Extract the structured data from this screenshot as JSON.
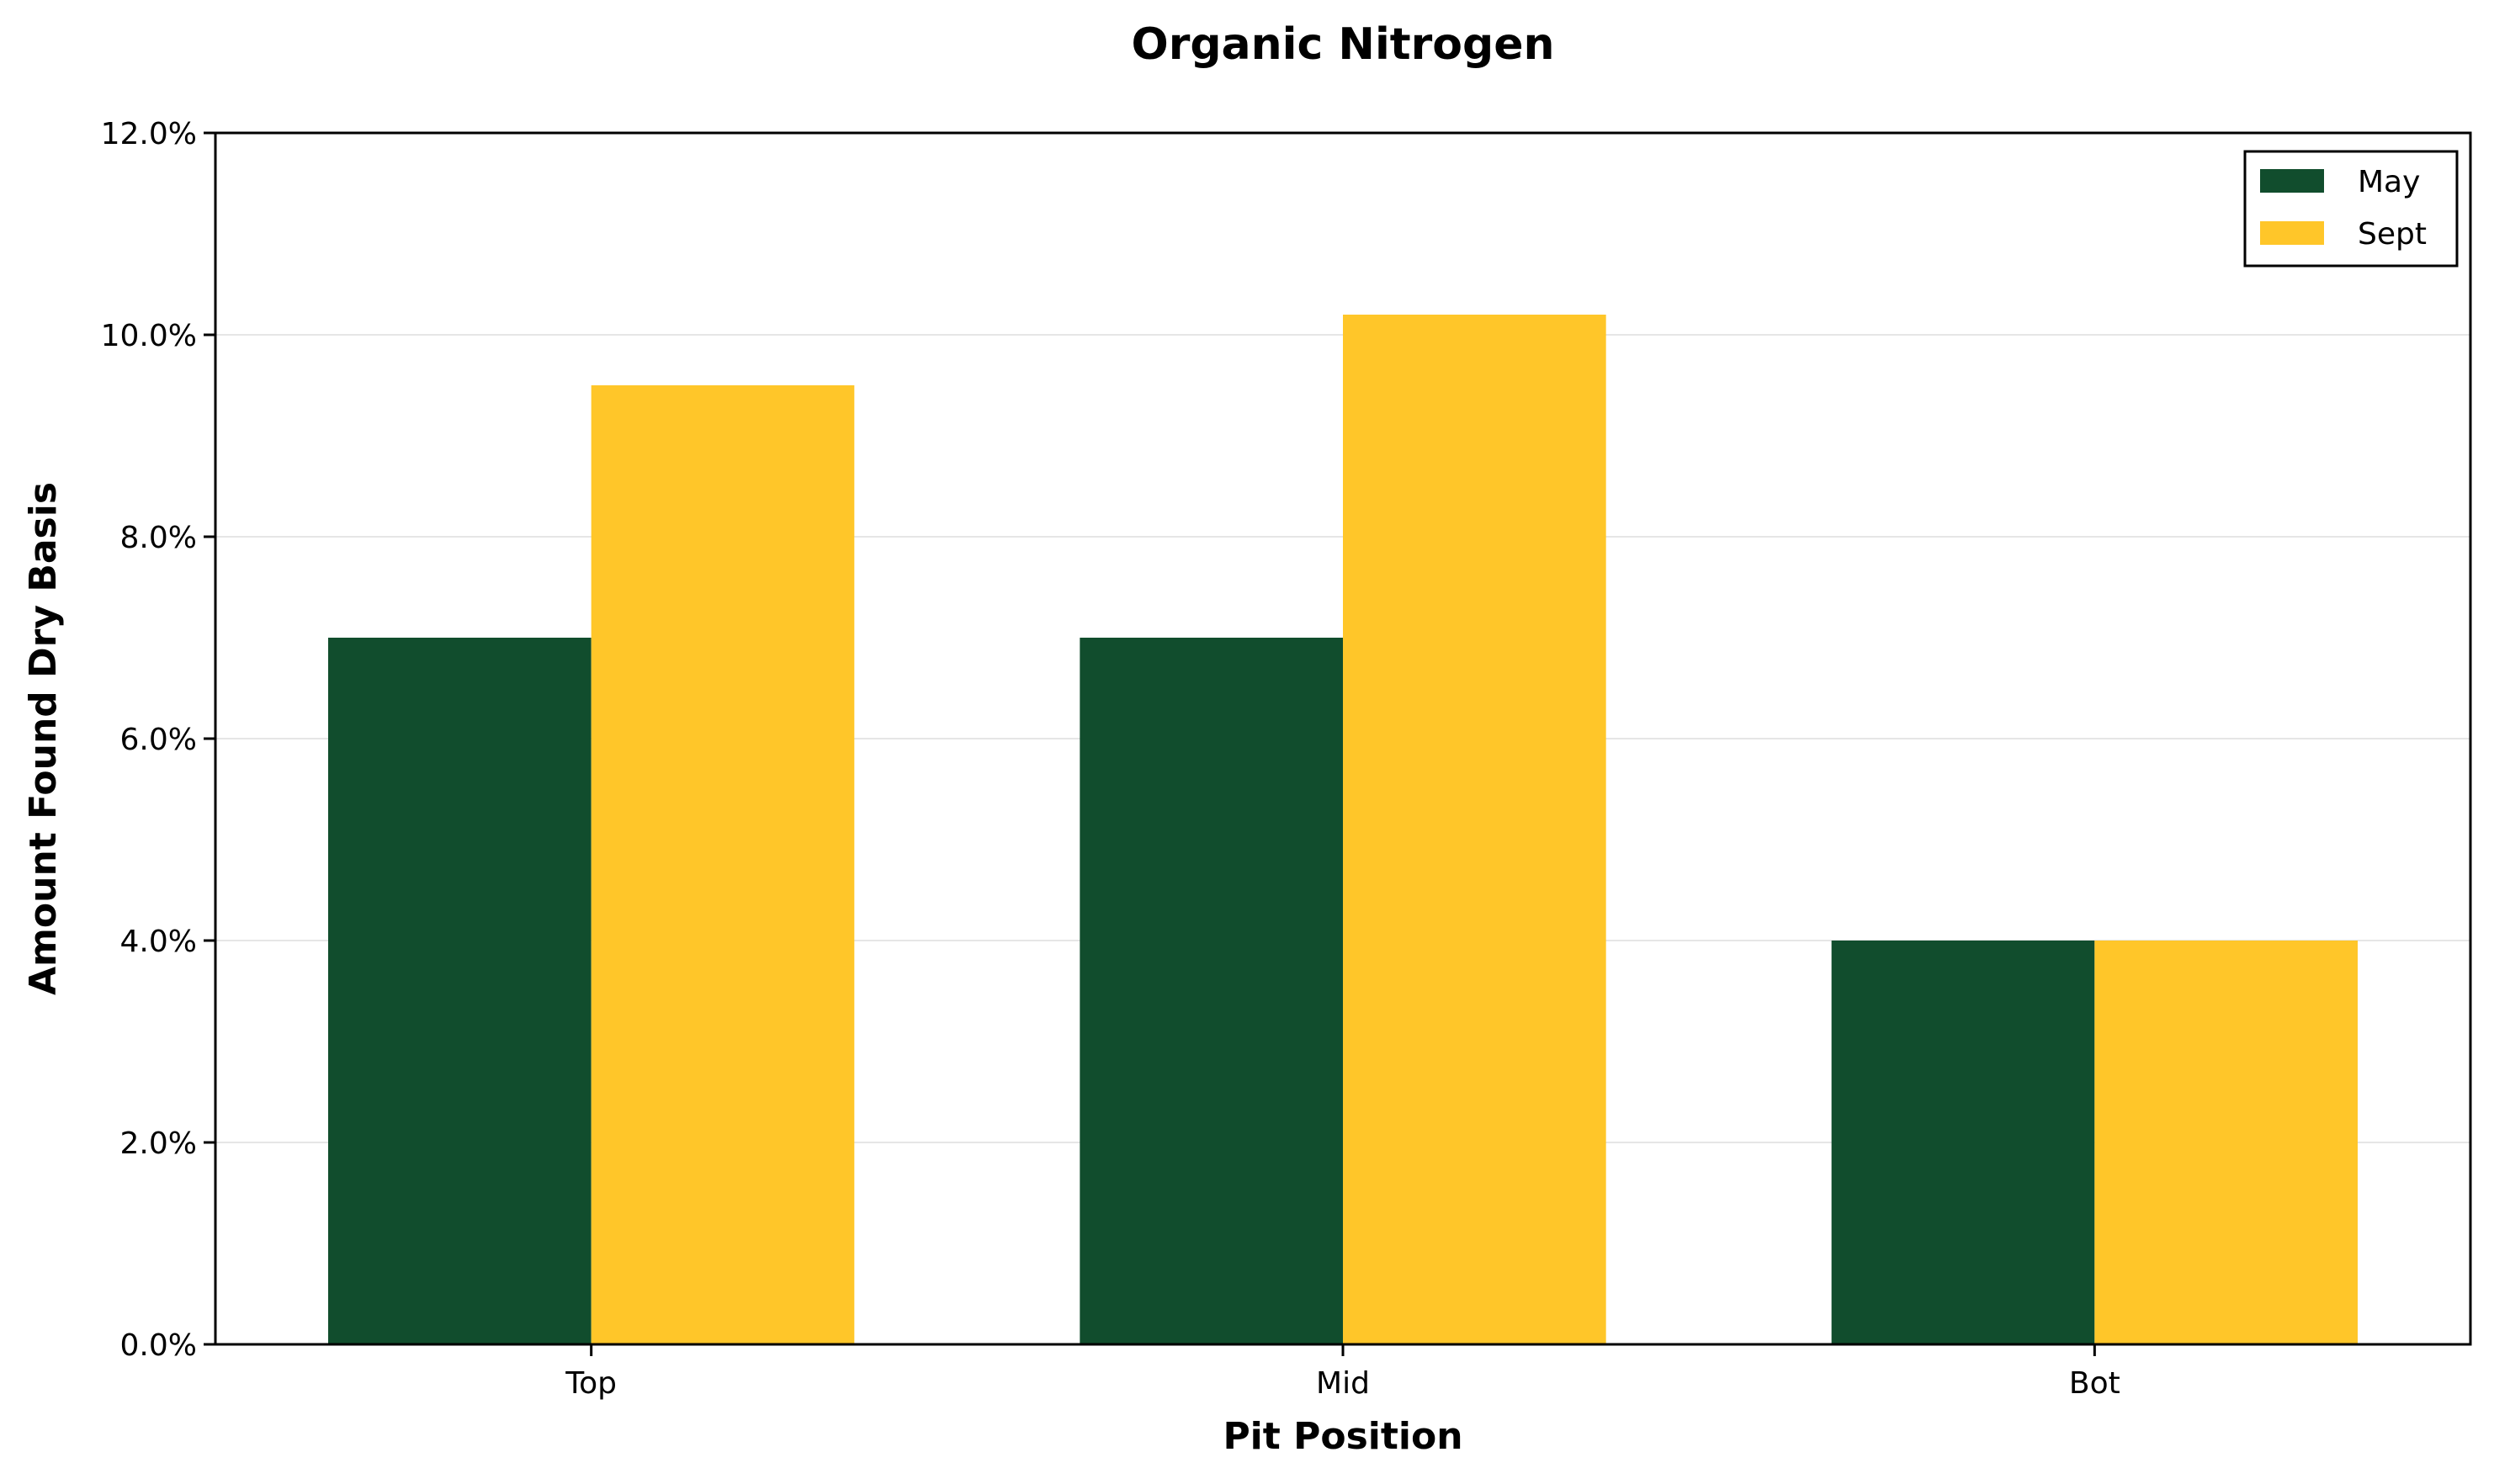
{
  "chart_data": {
    "type": "bar",
    "title": "Organic Nitrogen",
    "xlabel": "Pit Position",
    "ylabel": "Amount Found Dry Basis",
    "categories": [
      "Top",
      "Mid",
      "Bot"
    ],
    "series": [
      {
        "name": "May",
        "color": "#114d2d",
        "values": [
          7.0,
          7.0,
          4.0
        ]
      },
      {
        "name": "Sept",
        "color": "#ffc629",
        "values": [
          9.5,
          10.2,
          4.0
        ]
      }
    ],
    "ylim": [
      0,
      12
    ],
    "yticks": [
      0,
      2,
      4,
      6,
      8,
      10,
      12
    ],
    "ytick_labels": [
      "0.0%",
      "2.0%",
      "4.0%",
      "6.0%",
      "8.0%",
      "10.0%",
      "12.0%"
    ],
    "grid": "horizontal",
    "legend_position": "top-right"
  }
}
